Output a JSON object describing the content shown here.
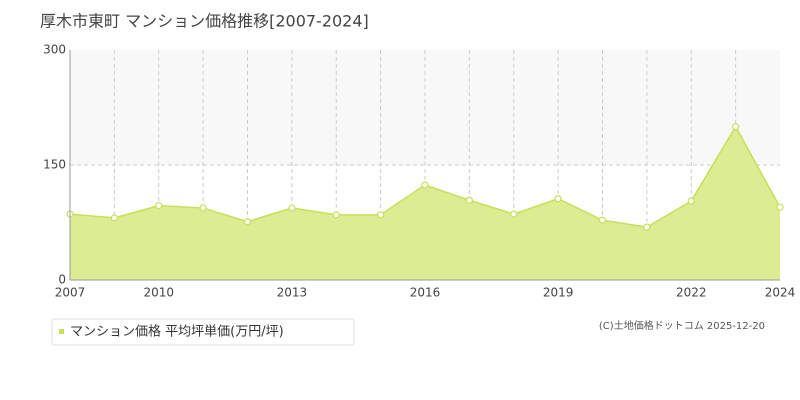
{
  "chart_data": {
    "type": "area",
    "title": "厚木市東町 マンション価格推移[2007-2024]",
    "categories": [
      "2007",
      null,
      "2010",
      null,
      null,
      "2013",
      null,
      null,
      "2016",
      null,
      null,
      "2019",
      null,
      null,
      "2022",
      null,
      "2024"
    ],
    "series": [
      {
        "name": "マンション価格 平均坪単価(万円/坪)",
        "color": "#c5e05a",
        "values": [
          86,
          81,
          97,
          94,
          76,
          94,
          85,
          85,
          124,
          104,
          86,
          106,
          78,
          69,
          103,
          200,
          95
        ]
      }
    ],
    "ylim": [
      0,
      300
    ],
    "yticks": [
      0,
      150,
      300
    ],
    "grid": true,
    "copyright": "(C)土地価格ドットコム 2025-12-20"
  }
}
